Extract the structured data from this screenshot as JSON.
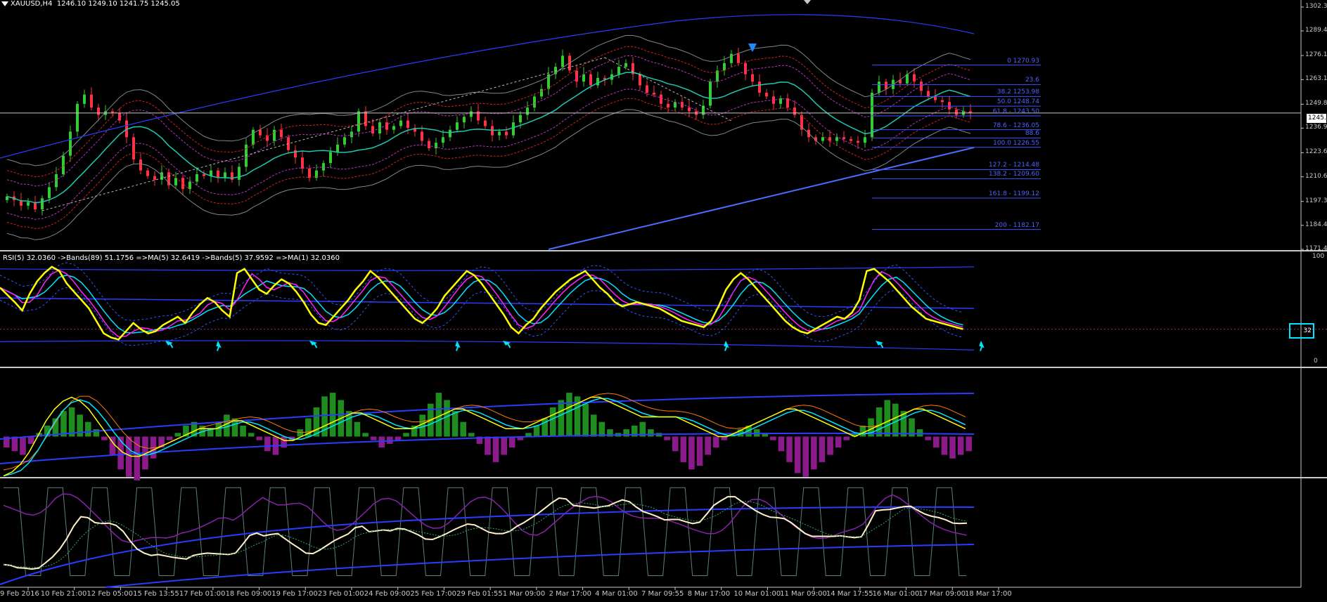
{
  "header": {
    "symbol": "XAUUSD,H4",
    "ohlc": "1246.10 1249.10 1241.75 1245.05"
  },
  "rsi_panel": {
    "label": "RSI(5) 32.0360 ->Bands(89) 51.1756 =>MA(5) 32.6419 ->Bands(5) 37.9592 =>MA(1) 32.0360",
    "level_value": "32",
    "scale_top": "100",
    "scale_bottom": "0"
  },
  "current_price": "1245.0",
  "colors": {
    "background": "#000000",
    "bull_candle": "#32cd32",
    "bear_candle": "#ff3344",
    "fib_line": "#3d55ff",
    "rsi_line": "#ffff00",
    "accent_cyan": "#00e5ff",
    "ma_blue": "#2a3cff",
    "histogram_up": "#1e8c1e",
    "histogram_down": "#8b1a8b"
  },
  "icons": {
    "top_marker": "down-arrow-blue",
    "rsi_markers": "cyan-arrow"
  },
  "chart_data": {
    "type": "candlestick",
    "title": "XAUUSD,H4",
    "price_axis_labels": [
      "1302.3",
      "1289.4",
      "1276.1",
      "1263.1",
      "1249.8",
      "1236.9",
      "1223.6",
      "1210.6",
      "1197.3",
      "1184.4",
      "1171.4"
    ],
    "ylim": [
      1171.4,
      1302.3
    ],
    "time_axis_labels": [
      "9 Feb 2016",
      "10 Feb 21:00",
      "12 Feb 05:00",
      "15 Feb 13:55",
      "17 Feb 01:00",
      "18 Feb 09:00",
      "19 Feb 17:00",
      "23 Feb 01:00",
      "24 Feb 09:00",
      "25 Feb 17:00",
      "29 Feb 01:55",
      "1 Mar 09:00",
      "2 Mar 17:00",
      "4 Mar 01:00",
      "7 Mar 09:55",
      "8 Mar 17:00",
      "10 Mar 01:00",
      "11 Mar 09:00",
      "14 Mar 17:55",
      "16 Mar 01:00",
      "17 Mar 09:00",
      "18 Mar 17:00"
    ],
    "fibonacci_levels": [
      {
        "label": "0 1270.93",
        "price": 1270.93
      },
      {
        "label": "23.6",
        "price": 1260.4
      },
      {
        "label": "38.2 1253.98",
        "price": 1253.98
      },
      {
        "label": "50.0 1248.74",
        "price": 1248.74
      },
      {
        "label": "61.8 - 1243.50",
        "price": 1243.5
      },
      {
        "label": "78.6 - 1236.05",
        "price": 1236.05
      },
      {
        "label": "88.6",
        "price": 1231.6
      },
      {
        "label": "100.0 1226.55",
        "price": 1226.55
      },
      {
        "label": "127.2 - 1214.48",
        "price": 1214.48
      },
      {
        "label": "138.2 - 1209.60",
        "price": 1209.6
      },
      {
        "label": "161.8 - 1199.12",
        "price": 1199.12
      },
      {
        "label": "200 - 1182.17",
        "price": 1182.17
      }
    ],
    "close_series": [
      1200,
      1198,
      1195,
      1197,
      1193,
      1199,
      1205,
      1212,
      1222,
      1235,
      1250,
      1255,
      1248,
      1244,
      1246,
      1245,
      1241,
      1232,
      1220,
      1214,
      1211,
      1209,
      1213,
      1206,
      1210,
      1204,
      1208,
      1212,
      1211,
      1214,
      1210,
      1213,
      1209,
      1216,
      1228,
      1236,
      1233,
      1230,
      1236,
      1232,
      1225,
      1221,
      1215,
      1210,
      1214,
      1218,
      1224,
      1228,
      1232,
      1235,
      1246,
      1238,
      1234,
      1240,
      1236,
      1238,
      1241,
      1237,
      1235,
      1230,
      1226,
      1229,
      1232,
      1236,
      1240,
      1243,
      1246,
      1241,
      1238,
      1233,
      1235,
      1233,
      1240,
      1244,
      1248,
      1254,
      1258,
      1266,
      1270,
      1276,
      1268,
      1262,
      1266,
      1260,
      1264,
      1263,
      1266,
      1270,
      1272,
      1266,
      1260,
      1256,
      1255,
      1250,
      1248,
      1251,
      1248,
      1246,
      1244,
      1249,
      1262,
      1268,
      1272,
      1277,
      1272,
      1266,
      1262,
      1256,
      1254,
      1250,
      1253,
      1248,
      1244,
      1236,
      1232,
      1230,
      1232,
      1230,
      1232,
      1231,
      1230,
      1229,
      1232,
      1256,
      1262,
      1258,
      1263,
      1261,
      1266,
      1262,
      1257,
      1254,
      1252,
      1251,
      1247,
      1244,
      1246,
      1245
    ],
    "rsi_values": [
      72,
      65,
      58,
      50,
      66,
      78,
      86,
      92,
      88,
      76,
      68,
      60,
      52,
      40,
      28,
      24,
      22,
      30,
      38,
      32,
      28,
      30,
      36,
      40,
      44,
      38,
      48,
      56,
      62,
      58,
      50,
      44,
      86,
      90,
      80,
      70,
      66,
      74,
      80,
      76,
      68,
      58,
      46,
      38,
      36,
      44,
      52,
      60,
      70,
      78,
      88,
      82,
      74,
      66,
      58,
      50,
      42,
      38,
      44,
      52,
      64,
      72,
      80,
      88,
      84,
      76,
      66,
      56,
      46,
      34,
      28,
      36,
      42,
      52,
      60,
      68,
      74,
      80,
      84,
      88,
      80,
      72,
      66,
      58,
      54,
      56,
      58,
      56,
      54,
      52,
      48,
      44,
      40,
      38,
      36,
      34,
      40,
      54,
      70,
      80,
      86,
      80,
      72,
      64,
      56,
      48,
      40,
      34,
      30,
      28,
      32,
      36,
      40,
      44,
      42,
      48,
      60,
      88,
      90,
      84,
      78,
      70,
      62,
      54,
      48,
      42,
      40,
      38,
      36,
      34,
      32
    ],
    "hist_values": [
      -6,
      -8,
      -10,
      -4,
      2,
      6,
      10,
      14,
      16,
      12,
      8,
      4,
      -2,
      -10,
      -18,
      -22,
      -24,
      -18,
      -12,
      -6,
      -2,
      2,
      6,
      8,
      6,
      4,
      8,
      12,
      10,
      6,
      2,
      -2,
      -8,
      -10,
      -6,
      -2,
      4,
      10,
      16,
      22,
      24,
      20,
      14,
      8,
      2,
      -2,
      -6,
      -4,
      -2,
      2,
      6,
      12,
      18,
      24,
      20,
      14,
      8,
      2,
      -4,
      -10,
      -14,
      -10,
      -6,
      -2,
      2,
      6,
      10,
      16,
      20,
      24,
      22,
      18,
      12,
      8,
      4,
      2,
      4,
      6,
      8,
      4,
      2,
      -2,
      -8,
      -14,
      -18,
      -16,
      -10,
      -6,
      -2,
      2,
      4,
      6,
      4,
      2,
      -2,
      -8,
      -14,
      -20,
      -22,
      -18,
      -14,
      -10,
      -6,
      -2,
      2,
      6,
      10,
      16,
      20,
      18,
      14,
      10,
      4,
      -2,
      -6,
      -10,
      -12,
      -10,
      -8
    ],
    "macd_line": [
      -20,
      -18,
      -14,
      -8,
      0,
      8,
      14,
      18,
      20,
      18,
      14,
      8,
      2,
      -4,
      -8,
      -10,
      -10,
      -8,
      -6,
      -4,
      -2,
      0,
      2,
      4,
      4,
      4,
      6,
      8,
      8,
      6,
      4,
      2,
      0,
      -2,
      -2,
      0,
      2,
      4,
      6,
      8,
      10,
      12,
      12,
      10,
      8,
      6,
      4,
      4,
      4,
      6,
      8,
      10,
      12,
      14,
      14,
      12,
      10,
      8,
      6,
      4,
      4,
      4,
      6,
      8,
      10,
      12,
      14,
      16,
      18,
      20,
      20,
      18,
      16,
      14,
      12,
      10,
      10,
      10,
      10,
      10,
      8,
      6,
      4,
      2,
      0,
      0,
      2,
      4,
      6,
      8,
      10,
      12,
      14,
      14,
      12,
      10,
      8,
      6,
      4,
      2,
      0,
      2,
      4,
      6,
      8,
      10,
      12,
      14,
      14,
      12,
      10,
      8,
      6,
      4
    ]
  }
}
